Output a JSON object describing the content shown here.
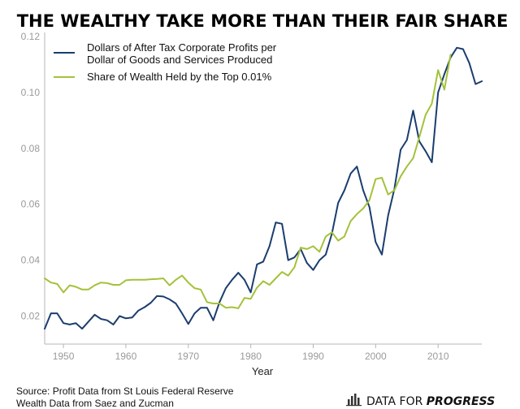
{
  "colors": {
    "profits": "#1b3d6e",
    "wealth": "#a3c23a",
    "axis": "#b5b5b5",
    "tick_text": "#9a9a9a"
  },
  "brand": {
    "prefix": "DATA FOR ",
    "bold": "PROGRESS",
    "icon": "bar-chart-icon"
  },
  "chart_data": {
    "type": "line",
    "title": "THE WEALTHY TAKE MORE THAN THEIR FAIR SHARE",
    "xlabel": "Year",
    "ylabel": "",
    "xlim": [
      1947,
      2017
    ],
    "ylim": [
      0.01,
      0.12
    ],
    "grid": false,
    "legend_position": "top-left",
    "x_ticks": [
      1950,
      1960,
      1970,
      1980,
      1990,
      2000,
      2010
    ],
    "x_tick_labels": [
      "1950",
      "1960",
      "1970",
      "1980",
      "1990",
      "2000",
      "2010"
    ],
    "y_ticks": [
      0.02,
      0.04,
      0.06,
      0.08,
      0.1,
      0.12
    ],
    "y_tick_labels": [
      "0.02",
      "0.04",
      "0.06",
      "0.08",
      "0.10",
      "0.12"
    ],
    "series": [
      {
        "name": "Dollars of After Tax Corporate Profits per Dollar of Goods and Services Produced",
        "name_lines": [
          "Dollars of After Tax Corporate Profits per",
          "Dollar of Goods and Services Produced"
        ],
        "color_key": "profits",
        "x": [
          1947,
          1948,
          1949,
          1950,
          1951,
          1952,
          1953,
          1954,
          1955,
          1956,
          1957,
          1958,
          1959,
          1960,
          1961,
          1962,
          1963,
          1964,
          1965,
          1966,
          1967,
          1968,
          1969,
          1970,
          1971,
          1972,
          1973,
          1974,
          1975,
          1976,
          1977,
          1978,
          1979,
          1980,
          1981,
          1982,
          1983,
          1984,
          1985,
          1986,
          1987,
          1988,
          1989,
          1990,
          1991,
          1992,
          1993,
          1994,
          1995,
          1996,
          1997,
          1998,
          1999,
          2000,
          2001,
          2002,
          2003,
          2004,
          2005,
          2006,
          2007,
          2008,
          2009,
          2010,
          2011,
          2012,
          2013,
          2014,
          2015,
          2016,
          2017
        ],
        "y": [
          0.0155,
          0.021,
          0.021,
          0.0175,
          0.017,
          0.0175,
          0.0155,
          0.018,
          0.0205,
          0.019,
          0.0185,
          0.017,
          0.02,
          0.0192,
          0.0195,
          0.022,
          0.0232,
          0.0248,
          0.0272,
          0.027,
          0.026,
          0.0245,
          0.021,
          0.0172,
          0.021,
          0.023,
          0.023,
          0.0185,
          0.025,
          0.03,
          0.033,
          0.0355,
          0.033,
          0.0285,
          0.0385,
          0.0395,
          0.045,
          0.0535,
          0.053,
          0.04,
          0.041,
          0.044,
          0.039,
          0.0365,
          0.04,
          0.042,
          0.0495,
          0.0605,
          0.065,
          0.071,
          0.0735,
          0.065,
          0.059,
          0.0465,
          0.042,
          0.056,
          0.0655,
          0.0795,
          0.083,
          0.0935,
          0.0825,
          0.079,
          0.075,
          0.1,
          0.1065,
          0.1125,
          0.116,
          0.1155,
          0.1105,
          0.103,
          0.104
        ]
      },
      {
        "name": "Share of Wealth Held by the Top 0.01%",
        "name_lines": [
          "Share of Wealth Held by the Top 0.01%"
        ],
        "color_key": "wealth",
        "x": [
          1947,
          1948,
          1949,
          1950,
          1951,
          1952,
          1953,
          1954,
          1955,
          1956,
          1957,
          1958,
          1959,
          1960,
          1961,
          1962,
          1963,
          1964,
          1965,
          1966,
          1967,
          1968,
          1969,
          1970,
          1971,
          1972,
          1973,
          1974,
          1975,
          1976,
          1977,
          1978,
          1979,
          1980,
          1981,
          1982,
          1983,
          1984,
          1985,
          1986,
          1987,
          1988,
          1989,
          1990,
          1991,
          1992,
          1993,
          1994,
          1995,
          1996,
          1997,
          1998,
          1999,
          2000,
          2001,
          2002,
          2003,
          2004,
          2005,
          2006,
          2007,
          2008,
          2009,
          2010,
          2011,
          2012
        ],
        "y": [
          0.0335,
          0.032,
          0.0315,
          0.0285,
          0.031,
          0.0305,
          0.0295,
          0.0295,
          0.031,
          0.032,
          0.0318,
          0.0312,
          0.0312,
          0.0328,
          0.033,
          0.033,
          0.033,
          0.0332,
          0.0333,
          0.0335,
          0.031,
          0.033,
          0.0345,
          0.032,
          0.03,
          0.0295,
          0.025,
          0.0245,
          0.0245,
          0.023,
          0.0232,
          0.0228,
          0.0265,
          0.0262,
          0.0302,
          0.0325,
          0.0312,
          0.0335,
          0.0358,
          0.0345,
          0.0375,
          0.0445,
          0.044,
          0.045,
          0.043,
          0.0485,
          0.05,
          0.047,
          0.0485,
          0.054,
          0.0565,
          0.0585,
          0.0615,
          0.069,
          0.0695,
          0.0635,
          0.065,
          0.07,
          0.0735,
          0.0765,
          0.084,
          0.092,
          0.096,
          0.108,
          0.101,
          0.1135
        ]
      }
    ]
  },
  "source": {
    "line1": "Source: Profit Data from St Louis Federal Reserve",
    "line2": "Wealth Data from Saez and Zucman"
  }
}
